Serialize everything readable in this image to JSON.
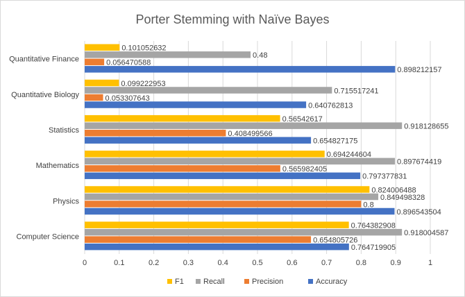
{
  "chart_data": {
    "type": "bar",
    "orientation": "horizontal",
    "title": "Porter Stemming with Naïve Bayes",
    "categories": [
      "Quantitative Finance",
      "Quantitative Biology",
      "Statistics",
      "Mathematics",
      "Physics",
      "Computer Science"
    ],
    "series": [
      {
        "name": "F1",
        "color": "#FFC000",
        "values": [
          0.101052632,
          0.099222953,
          0.56542617,
          0.694244604,
          0.824006488,
          0.764382908
        ]
      },
      {
        "name": "Recall",
        "color": "#A5A5A5",
        "values": [
          0.48,
          0.715517241,
          0.918128655,
          0.897674419,
          0.849498328,
          0.918004587
        ]
      },
      {
        "name": "Precision",
        "color": "#ED7D31",
        "values": [
          0.056470588,
          0.053307643,
          0.408499566,
          0.565982405,
          0.8,
          0.654805726
        ]
      },
      {
        "name": "Accuracy",
        "color": "#4472C4",
        "values": [
          0.898212157,
          0.640762813,
          0.654827175,
          0.797377831,
          0.896543504,
          0.764719905
        ]
      }
    ],
    "data_labels": [
      [
        "0.101052632",
        "0.48",
        "0.056470588",
        "0.898212157"
      ],
      [
        "0.099222953",
        "0.715517241",
        "0.053307643",
        "0.640762813"
      ],
      [
        "0.56542617",
        "0.918128655",
        "0.408499566",
        "0.654827175"
      ],
      [
        "0.694244604",
        "0.897674419",
        "0.565982405",
        "0.797377831"
      ],
      [
        "0.824006488",
        "0.849498328",
        "0.8",
        "0.896543504"
      ],
      [
        "0.764382908",
        "0.918004587",
        "0.654805726",
        "0.764719905"
      ]
    ],
    "xlim": [
      0,
      1
    ],
    "xticks": [
      "0",
      "0.1",
      "0.2",
      "0.3",
      "0.4",
      "0.5",
      "0.6",
      "0.7",
      "0.8",
      "0.9",
      "1"
    ],
    "grid": true,
    "legend_position": "bottom"
  }
}
